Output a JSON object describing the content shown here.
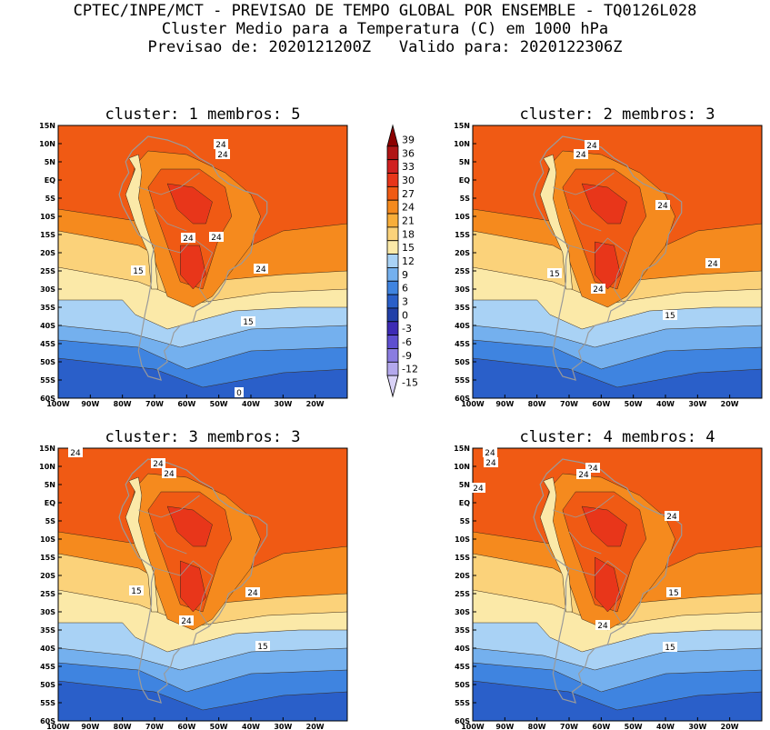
{
  "header": {
    "line1": "CPTEC/INPE/MCT - PREVISAO DE TEMPO GLOBAL POR ENSEMBLE - TQ0126L028",
    "line2": "Cluster Medio para a Temperatura (C) em 1000 hPa",
    "line3": "Previsao de: 2020121200Z   Valido para: 2020122306Z"
  },
  "panels": [
    {
      "title": "cluster: 1   membros: 5",
      "labels": [
        "24",
        "24",
        "24",
        "24",
        "24",
        "15",
        "15",
        "0"
      ]
    },
    {
      "title": "cluster: 2   membros: 3",
      "labels": [
        "24",
        "24",
        "24",
        "24",
        "24",
        "15",
        "15"
      ]
    },
    {
      "title": "cluster: 3   membros: 3",
      "labels": [
        "24",
        "24",
        "24",
        "24",
        "24",
        "15",
        "15"
      ]
    },
    {
      "title": "cluster: 4   membros: 4",
      "labels": [
        "24",
        "24",
        "24",
        "24",
        "24",
        "24",
        "24",
        "15",
        "15"
      ]
    }
  ],
  "lat_ticks": [
    "15N",
    "10N",
    "5N",
    "EQ",
    "5S",
    "10S",
    "15S",
    "20S",
    "25S",
    "30S",
    "35S",
    "40S",
    "45S",
    "50S",
    "55S",
    "60S"
  ],
  "lon_ticks": [
    "100W",
    "90W",
    "80W",
    "70W",
    "60W",
    "50W",
    "40W",
    "30W",
    "20W"
  ],
  "colorbar": {
    "labels": [
      "39",
      "36",
      "33",
      "30",
      "27",
      "24",
      "21",
      "18",
      "15",
      "12",
      "9",
      "6",
      "3",
      "0",
      "-3",
      "-6",
      "-9",
      "-12",
      "-15"
    ],
    "colors": [
      "#8b0000",
      "#b01515",
      "#d02020",
      "#e8361a",
      "#f05a14",
      "#f58a1e",
      "#f8ae3a",
      "#fbd27a",
      "#fbe9a8",
      "#a9d2f5",
      "#74b0ee",
      "#3f84e0",
      "#2a5fc9",
      "#2240a8",
      "#3d2bb5",
      "#5e4fd0",
      "#8a7ce0",
      "#b3a8ec",
      "#d9d2f7"
    ]
  },
  "colors": {
    "ocean_warm": "#f05a14",
    "land_hot": "#e8361a",
    "mid": "#f58a1e",
    "pale": "#fbd27a",
    "cream": "#fbe9a8",
    "cool1": "#a9d2f5",
    "cool2": "#74b0ee",
    "cool3": "#3f84e0",
    "cool4": "#2a5fc9"
  }
}
